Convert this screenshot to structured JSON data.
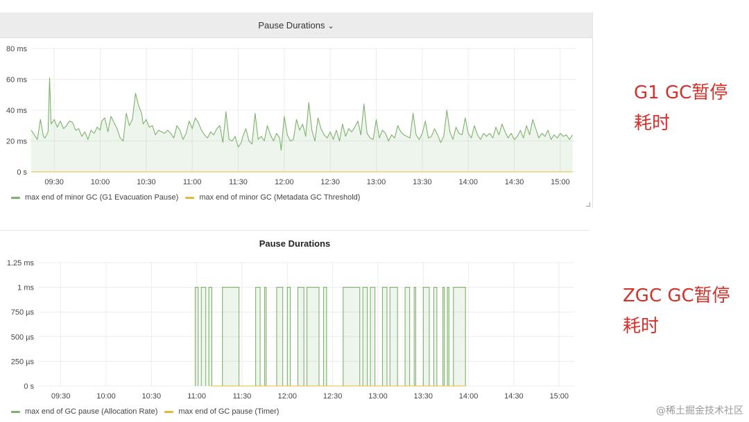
{
  "chart_data": [
    {
      "type": "line",
      "title": "Pause Durations",
      "title_has_dropdown": true,
      "ylim": [
        0,
        80
      ],
      "y_ticks": [
        "0 s",
        "20 ms",
        "40 ms",
        "60 ms",
        "80 ms"
      ],
      "x_ticks": [
        "09:30",
        "10:00",
        "10:30",
        "11:00",
        "11:30",
        "12:00",
        "12:30",
        "13:00",
        "13:30",
        "14:00",
        "14:30",
        "15:00"
      ],
      "x_range_minutes": [
        555,
        910
      ],
      "grid": true,
      "legend": "bottom-left",
      "series": [
        {
          "name": "max end of minor GC (G1 Evacuation Pause)",
          "color": "#7eb26d",
          "area": true,
          "points": [
            [
              555,
              27
            ],
            [
              557,
              24
            ],
            [
              559,
              21
            ],
            [
              561,
              34
            ],
            [
              563,
              23
            ],
            [
              564,
              22
            ],
            [
              566,
              26
            ],
            [
              567,
              61
            ],
            [
              568,
              31
            ],
            [
              570,
              34
            ],
            [
              572,
              29
            ],
            [
              574,
              33
            ],
            [
              576,
              28
            ],
            [
              578,
              30
            ],
            [
              580,
              33
            ],
            [
              582,
              32
            ],
            [
              584,
              27
            ],
            [
              586,
              28
            ],
            [
              588,
              23
            ],
            [
              590,
              26
            ],
            [
              592,
              21
            ],
            [
              594,
              27
            ],
            [
              596,
              25
            ],
            [
              598,
              29
            ],
            [
              600,
              27
            ],
            [
              601,
              33
            ],
            [
              603,
              35
            ],
            [
              605,
              26
            ],
            [
              607,
              36
            ],
            [
              609,
              32
            ],
            [
              611,
              28
            ],
            [
              613,
              22
            ],
            [
              615,
              20
            ],
            [
              617,
              38
            ],
            [
              619,
              30
            ],
            [
              621,
              34
            ],
            [
              623,
              51
            ],
            [
              625,
              43
            ],
            [
              627,
              38
            ],
            [
              628,
              31
            ],
            [
              630,
              34
            ],
            [
              632,
              29
            ],
            [
              634,
              30
            ],
            [
              636,
              24
            ],
            [
              638,
              27
            ],
            [
              640,
              26
            ],
            [
              642,
              25
            ],
            [
              644,
              27
            ],
            [
              646,
              25
            ],
            [
              648,
              22
            ],
            [
              650,
              30
            ],
            [
              652,
              27
            ],
            [
              654,
              21
            ],
            [
              656,
              25
            ],
            [
              658,
              33
            ],
            [
              660,
              28
            ],
            [
              662,
              35
            ],
            [
              664,
              32
            ],
            [
              666,
              27
            ],
            [
              668,
              24
            ],
            [
              670,
              22
            ],
            [
              672,
              26
            ],
            [
              674,
              24
            ],
            [
              676,
              28
            ],
            [
              678,
              30
            ],
            [
              680,
              19
            ],
            [
              682,
              39
            ],
            [
              684,
              21
            ],
            [
              686,
              20
            ],
            [
              688,
              23
            ],
            [
              690,
              16
            ],
            [
              692,
              19
            ],
            [
              693,
              23
            ],
            [
              695,
              28
            ],
            [
              697,
              20
            ],
            [
              699,
              18
            ],
            [
              701,
              38
            ],
            [
              703,
              21
            ],
            [
              705,
              23
            ],
            [
              707,
              20
            ],
            [
              709,
              30
            ],
            [
              711,
              24
            ],
            [
              713,
              20
            ],
            [
              715,
              25
            ],
            [
              717,
              22
            ],
            [
              718,
              14
            ],
            [
              720,
              36
            ],
            [
              722,
              24
            ],
            [
              724,
              20
            ],
            [
              726,
              21
            ],
            [
              728,
              34
            ],
            [
              730,
              27
            ],
            [
              732,
              31
            ],
            [
              734,
              23
            ],
            [
              736,
              45
            ],
            [
              738,
              27
            ],
            [
              740,
              20
            ],
            [
              742,
              35
            ],
            [
              744,
              28
            ],
            [
              746,
              24
            ],
            [
              748,
              22
            ],
            [
              750,
              26
            ],
            [
              752,
              21
            ],
            [
              754,
              27
            ],
            [
              756,
              20
            ],
            [
              758,
              31
            ],
            [
              760,
              23
            ],
            [
              762,
              28
            ],
            [
              764,
              26
            ],
            [
              766,
              29
            ],
            [
              768,
              33
            ],
            [
              770,
              24
            ],
            [
              772,
              44
            ],
            [
              774,
              25
            ],
            [
              776,
              22
            ],
            [
              778,
              21
            ],
            [
              780,
              34
            ],
            [
              782,
              22
            ],
            [
              784,
              27
            ],
            [
              786,
              25
            ],
            [
              788,
              20
            ],
            [
              790,
              24
            ],
            [
              792,
              22
            ],
            [
              794,
              30
            ],
            [
              796,
              26
            ],
            [
              798,
              24
            ],
            [
              800,
              23
            ],
            [
              802,
              22
            ],
            [
              804,
              38
            ],
            [
              806,
              24
            ],
            [
              808,
              21
            ],
            [
              810,
              25
            ],
            [
              812,
              33
            ],
            [
              814,
              22
            ],
            [
              816,
              23
            ],
            [
              818,
              28
            ],
            [
              820,
              24
            ],
            [
              822,
              19
            ],
            [
              824,
              23
            ],
            [
              826,
              40
            ],
            [
              828,
              26
            ],
            [
              830,
              21
            ],
            [
              832,
              29
            ],
            [
              834,
              25
            ],
            [
              836,
              24
            ],
            [
              838,
              35
            ],
            [
              840,
              25
            ],
            [
              842,
              22
            ],
            [
              844,
              30
            ],
            [
              846,
              24
            ],
            [
              848,
              21
            ],
            [
              850,
              25
            ],
            [
              852,
              23
            ],
            [
              854,
              25
            ],
            [
              856,
              22
            ],
            [
              858,
              29
            ],
            [
              860,
              24
            ],
            [
              862,
              31
            ],
            [
              864,
              26
            ],
            [
              866,
              22
            ],
            [
              868,
              25
            ],
            [
              870,
              21
            ],
            [
              872,
              23
            ],
            [
              874,
              27
            ],
            [
              876,
              22
            ],
            [
              878,
              30
            ],
            [
              880,
              24
            ],
            [
              882,
              34
            ],
            [
              884,
              28
            ],
            [
              886,
              22
            ],
            [
              888,
              25
            ],
            [
              890,
              23
            ],
            [
              892,
              27
            ],
            [
              894,
              21
            ],
            [
              896,
              24
            ],
            [
              898,
              22
            ],
            [
              900,
              25
            ],
            [
              902,
              23
            ],
            [
              904,
              24
            ],
            [
              906,
              21
            ],
            [
              908,
              24
            ]
          ]
        },
        {
          "name": "max end of minor GC (Metadata GC Threshold)",
          "color": "#eab839",
          "area": false,
          "points": [
            [
              555,
              0
            ],
            [
              908,
              0
            ]
          ]
        }
      ]
    },
    {
      "type": "line",
      "title": "Pause Durations",
      "title_has_dropdown": false,
      "ylim": [
        0,
        1.25
      ],
      "y_ticks": [
        "0 s",
        "250 µs",
        "500 µs",
        "750 µs",
        "1 ms",
        "1.25 ms"
      ],
      "x_ticks": [
        "09:30",
        "10:00",
        "10:30",
        "11:00",
        "11:30",
        "12:00",
        "12:30",
        "13:00",
        "13:30",
        "14:00",
        "14:30",
        "15:00"
      ],
      "x_range_minutes": [
        555,
        910
      ],
      "grid": true,
      "legend": "bottom-left",
      "series": [
        {
          "name": "max end of GC pause (Allocation Rate)",
          "color": "#7eb26d",
          "area": true,
          "on_intervals_minutes": [
            [
              659,
              661
            ],
            [
              663,
              666
            ],
            [
              668,
              670
            ],
            [
              677,
              688
            ],
            [
              699,
              702
            ],
            [
              705,
              706
            ],
            [
              713,
              717
            ],
            [
              720,
              722
            ],
            [
              727,
              731
            ],
            [
              733,
              741
            ],
            [
              744,
              746
            ],
            [
              757,
              768
            ],
            [
              770,
              773
            ],
            [
              775,
              778
            ],
            [
              783,
              786
            ],
            [
              788,
              793
            ],
            [
              798,
              801
            ],
            [
              804,
              805
            ],
            [
              810,
              814
            ],
            [
              817,
              819
            ],
            [
              823,
              824
            ],
            [
              826,
              827
            ],
            [
              830,
              838
            ]
          ],
          "on_value_ms": 1,
          "off_value_ms": 0
        },
        {
          "name": "max end of GC pause (Timer)",
          "color": "#eab839",
          "area": false,
          "points": [
            [
              669,
              0
            ],
            [
              838,
              0
            ]
          ]
        }
      ]
    }
  ],
  "annotations": {
    "top": "G1  GC暂停耗时",
    "bottom": "ZGC  GC暂停耗时"
  },
  "watermark": "@稀土掘金技术社区"
}
